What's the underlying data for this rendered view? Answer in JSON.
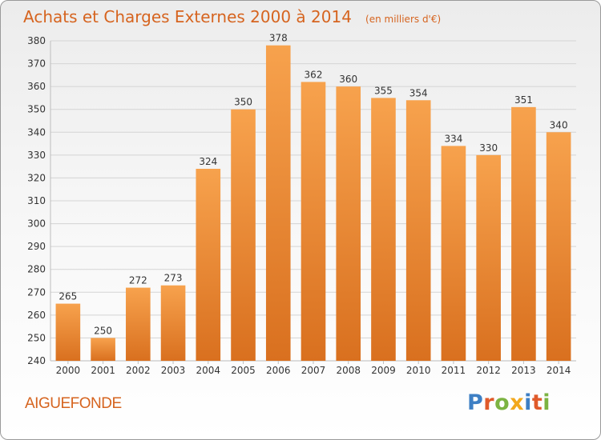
{
  "chart_data": {
    "type": "bar",
    "title": "Achats et Charges Externes 2000 à 2014",
    "subtitle": "(en milliers d'€)",
    "categories": [
      "2000",
      "2001",
      "2002",
      "2003",
      "2004",
      "2005",
      "2006",
      "2007",
      "2008",
      "2009",
      "2010",
      "2011",
      "2012",
      "2013",
      "2014"
    ],
    "values": [
      265,
      250,
      272,
      273,
      324,
      350,
      378,
      362,
      360,
      355,
      354,
      334,
      330,
      351,
      340
    ],
    "ylim": [
      240,
      380
    ],
    "yticks": [
      240,
      250,
      260,
      270,
      280,
      290,
      300,
      310,
      320,
      330,
      340,
      350,
      360,
      370,
      380
    ],
    "grid": true,
    "bar_color_top": "#f7a24d",
    "bar_color_bottom": "#d9701f"
  },
  "location": "AIGUEFONDE",
  "brand": {
    "letters": [
      "P",
      "r",
      "o",
      "x",
      "i",
      "t",
      "i"
    ],
    "colors": [
      "#3d7fc4",
      "#e05a2a",
      "#7cb342",
      "#f2a81d",
      "#3d7fc4",
      "#e05a2a",
      "#7cb342"
    ]
  }
}
